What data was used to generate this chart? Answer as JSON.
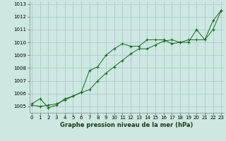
{
  "xlabel": "Graphe pression niveau de la mer (hPa)",
  "bg_color": "#cce8e0",
  "grid_color": "#aacccc",
  "line_color": "#1a6620",
  "ylim": [
    1004.5,
    1013.2
  ],
  "yticks": [
    1005,
    1006,
    1007,
    1008,
    1009,
    1010,
    1011,
    1012,
    1013
  ],
  "xlim": [
    -0.3,
    23.3
  ],
  "xticks": [
    0,
    1,
    2,
    3,
    4,
    5,
    6,
    7,
    8,
    9,
    10,
    11,
    12,
    13,
    14,
    15,
    16,
    17,
    18,
    19,
    20,
    21,
    22,
    23
  ],
  "line1_x": [
    0,
    1,
    2,
    3,
    4,
    5,
    6,
    7,
    8,
    9,
    10,
    11,
    12,
    13,
    14,
    15,
    16,
    17,
    18,
    19,
    20,
    21,
    22,
    23
  ],
  "line1_y": [
    1005.2,
    1005.6,
    1004.9,
    1005.1,
    1005.6,
    1005.8,
    1006.1,
    1007.8,
    1008.1,
    1009.0,
    1009.5,
    1009.9,
    1009.7,
    1009.7,
    1010.2,
    1010.2,
    1010.2,
    1009.9,
    1010.0,
    1010.0,
    1011.0,
    1010.2,
    1011.7,
    1012.5
  ],
  "line2_x": [
    0,
    1,
    2,
    3,
    4,
    5,
    6,
    7,
    8,
    9,
    10,
    11,
    12,
    13,
    14,
    15,
    16,
    17,
    18,
    19,
    20,
    21,
    22,
    23
  ],
  "line2_y": [
    1005.1,
    1005.0,
    1005.1,
    1005.2,
    1005.5,
    1005.8,
    1006.1,
    1006.3,
    1007.0,
    1007.6,
    1008.1,
    1008.6,
    1009.1,
    1009.5,
    1009.5,
    1009.8,
    1010.1,
    1010.2,
    1010.0,
    1010.2,
    1010.2,
    1010.2,
    1011.0,
    1012.5
  ],
  "xlabel_fontsize": 6,
  "tick_fontsize": 5,
  "lw": 0.7,
  "ms": 2.5
}
